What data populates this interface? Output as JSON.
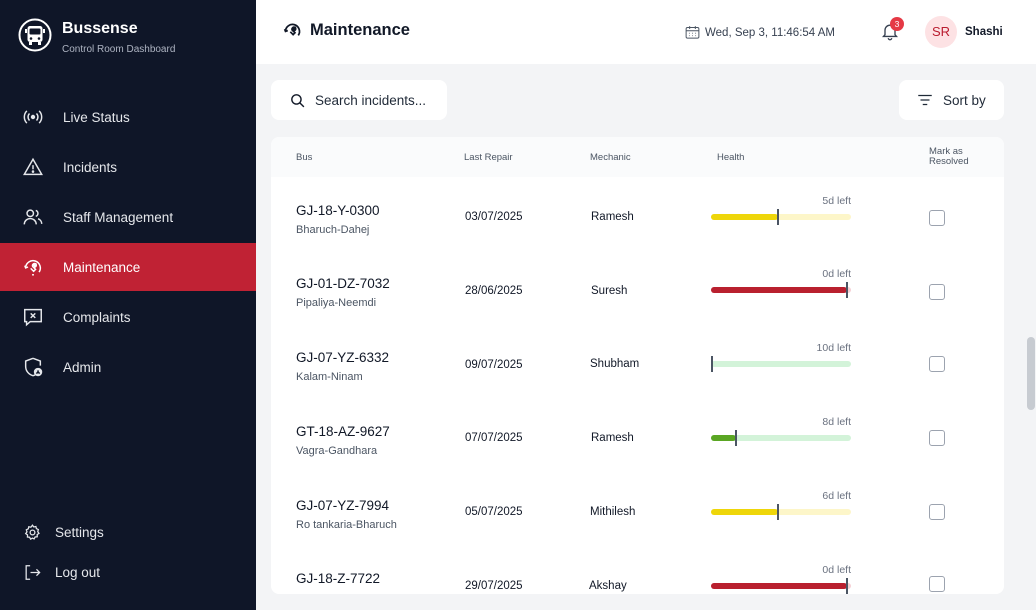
{
  "brand": {
    "name": "Bussense",
    "subtitle": "Control Room Dashboard"
  },
  "nav": [
    {
      "label": "Live Status",
      "icon": "broadcast-icon"
    },
    {
      "label": "Incidents",
      "icon": "warning-icon"
    },
    {
      "label": "Staff Management",
      "icon": "users-icon"
    },
    {
      "label": "Maintenance",
      "icon": "maintenance-icon",
      "active": true
    },
    {
      "label": "Complaints",
      "icon": "complaint-icon"
    },
    {
      "label": "Admin",
      "icon": "admin-shield-icon"
    }
  ],
  "bottom_nav": [
    {
      "label": "Settings",
      "icon": "gear-icon"
    },
    {
      "label": "Log out",
      "icon": "logout-icon"
    }
  ],
  "header": {
    "title": "Maintenance",
    "datetime": "Wed, Sep 3, 11:46:54 AM",
    "notification_count": "3",
    "user_initials": "SR",
    "user_name": "Shashi"
  },
  "toolbar": {
    "search_placeholder": "Search incidents...",
    "sort_label": "Sort by"
  },
  "table": {
    "columns": [
      "Bus",
      "Last Repair",
      "Mechanic",
      "Health",
      "Mark as Resolved"
    ],
    "rows": [
      {
        "bus": "GJ-18-Y-0300",
        "route": "Bharuch-Dahej",
        "last_repair": "03/07/2025",
        "mechanic": "Ramesh",
        "days_left": "5d left",
        "health_fraction": 0.48,
        "fill_color": "#eed60a",
        "track_color": "#fdf6c9",
        "resolved": false
      },
      {
        "bus": "GJ-01-DZ-7032",
        "route": "Pipaliya-Neemdi",
        "last_repair": "28/06/2025",
        "mechanic": "Suresh",
        "days_left": "0d left",
        "health_fraction": 0.97,
        "fill_color": "#b9202f",
        "track_color": "#f5d0d4",
        "resolved": false
      },
      {
        "bus": "GJ-07-YZ-6332",
        "route": "Kalam-Ninam",
        "last_repair": "09/07/2025",
        "mechanic": "Shubham",
        "days_left": "10d left",
        "health_fraction": 0.0,
        "fill_color": "#5aa623",
        "track_color": "#d3f3d9",
        "resolved": false
      },
      {
        "bus": "GT-18-AZ-9627",
        "route": "Vagra-Gandhara",
        "last_repair": "07/07/2025",
        "mechanic": "Ramesh",
        "days_left": "8d left",
        "health_fraction": 0.18,
        "fill_color": "#5aa623",
        "track_color": "#d3f3d9",
        "resolved": false
      },
      {
        "bus": "GJ-07-YZ-7994",
        "route": "Ro tankaria-Bharuch",
        "last_repair": "05/07/2025",
        "mechanic": "Mithilesh",
        "days_left": "6d left",
        "health_fraction": 0.48,
        "fill_color": "#eed60a",
        "track_color": "#fdf6c9",
        "resolved": false
      },
      {
        "bus": "GJ-18-Z-7722",
        "route": "",
        "last_repair": "29/07/2025",
        "mechanic": "Akshay",
        "days_left": "0d left",
        "health_fraction": 0.97,
        "fill_color": "#b9202f",
        "track_color": "#f5d0d4",
        "resolved": false
      }
    ]
  }
}
